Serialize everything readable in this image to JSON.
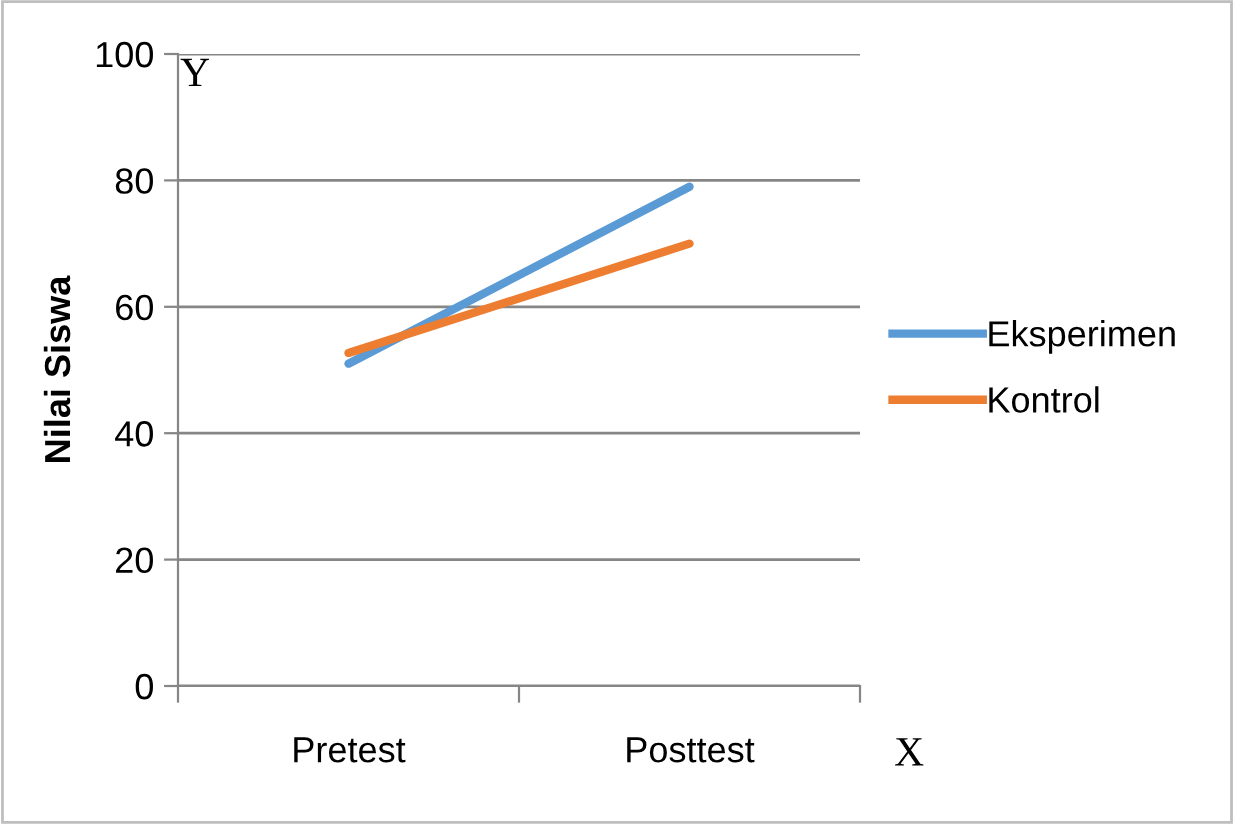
{
  "chart_data": {
    "type": "line",
    "ylabel": "Nilai Siswa",
    "categories": [
      "Pretest",
      "Posttest"
    ],
    "series": [
      {
        "name": "Eksperimen",
        "color": "#5b9bd5",
        "values": [
          51,
          79
        ]
      },
      {
        "name": "Kontrol",
        "color": "#ed7d31",
        "values": [
          52.7,
          70
        ]
      }
    ],
    "ylim": [
      0,
      100
    ],
    "yticks": [
      0,
      20,
      40,
      60,
      80,
      100
    ],
    "grid": "y",
    "legend": "right",
    "marker": "none",
    "annotations": [
      "Y",
      "X"
    ]
  }
}
